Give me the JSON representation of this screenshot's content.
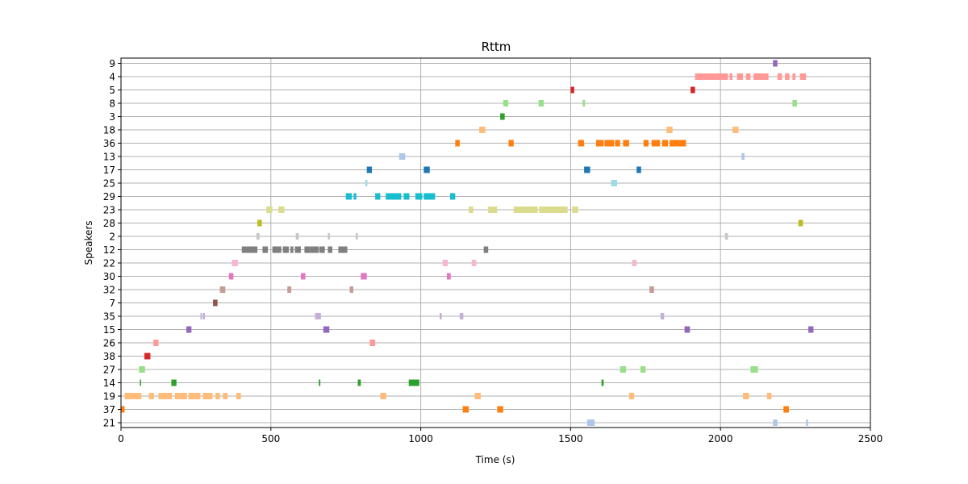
{
  "chart_data": {
    "type": "gantt",
    "title": "Rttm",
    "xlabel": "Time (s)",
    "ylabel": "Speakers",
    "xlim": [
      0,
      2500
    ],
    "x_ticks": [
      0,
      500,
      1000,
      1500,
      2000,
      2500
    ],
    "grid": true,
    "speakers": [
      "9",
      "4",
      "5",
      "8",
      "3",
      "18",
      "36",
      "13",
      "17",
      "25",
      "29",
      "23",
      "28",
      "2",
      "12",
      "22",
      "30",
      "32",
      "7",
      "35",
      "15",
      "26",
      "38",
      "27",
      "14",
      "19",
      "37",
      "21"
    ],
    "colors": {
      "9": "#9467bd",
      "4": "#ff9896",
      "5": "#d62728",
      "8": "#98df8a",
      "3": "#2ca02c",
      "18": "#ffbb78",
      "36": "#ff7f0e",
      "13": "#aec7e8",
      "17": "#1f77b4",
      "25": "#9edae5",
      "29": "#17becf",
      "23": "#dbdb8d",
      "28": "#bcbd22",
      "2": "#c7c7c7",
      "12": "#7f7f7f",
      "22": "#f7b6d2",
      "30": "#e377c2",
      "32": "#c49c94",
      "7": "#8c564b",
      "35": "#c5b0d5",
      "15": "#9467bd",
      "26": "#ff9896",
      "38": "#d62728",
      "27": "#98df8a",
      "14": "#2ca02c",
      "19": "#ffbb78",
      "37": "#ff7f0e",
      "21": "#aec7e8"
    },
    "segments": {
      "9": [
        [
          2175,
          2190
        ]
      ],
      "4": [
        [
          1915,
          2025
        ],
        [
          2030,
          2040
        ],
        [
          2055,
          2075
        ],
        [
          2085,
          2100
        ],
        [
          2110,
          2145
        ],
        [
          2145,
          2160
        ],
        [
          2190,
          2205
        ],
        [
          2215,
          2230
        ],
        [
          2240,
          2250
        ],
        [
          2265,
          2285
        ]
      ],
      "5": [
        [
          1500,
          1512
        ],
        [
          1900,
          1915
        ]
      ],
      "8": [
        [
          1275,
          1292
        ],
        [
          1393,
          1410
        ],
        [
          1540,
          1548
        ],
        [
          2240,
          2255
        ]
      ],
      "3": [
        [
          1265,
          1280
        ]
      ],
      "18": [
        [
          1195,
          1215
        ],
        [
          1820,
          1840
        ],
        [
          2040,
          2060
        ]
      ],
      "36": [
        [
          1115,
          1130
        ],
        [
          1293,
          1310
        ],
        [
          1525,
          1545
        ],
        [
          1585,
          1610
        ],
        [
          1613,
          1645
        ],
        [
          1648,
          1665
        ],
        [
          1675,
          1695
        ],
        [
          1743,
          1760
        ],
        [
          1770,
          1798
        ],
        [
          1805,
          1825
        ],
        [
          1830,
          1885
        ]
      ],
      "13": [
        [
          928,
          948
        ],
        [
          2070,
          2080
        ]
      ],
      "17": [
        [
          820,
          837
        ],
        [
          1010,
          1030
        ],
        [
          1545,
          1565
        ],
        [
          1720,
          1735
        ]
      ],
      "25": [
        [
          815,
          822
        ],
        [
          1635,
          1655
        ]
      ],
      "29": [
        [
          750,
          770
        ],
        [
          776,
          785
        ],
        [
          848,
          865
        ],
        [
          883,
          935
        ],
        [
          943,
          962
        ],
        [
          982,
          1005
        ],
        [
          1010,
          1048
        ],
        [
          1098,
          1115
        ]
      ],
      "23": [
        [
          485,
          505
        ],
        [
          525,
          545
        ],
        [
          1160,
          1175
        ],
        [
          1225,
          1255
        ],
        [
          1310,
          1390
        ],
        [
          1395,
          1490
        ],
        [
          1505,
          1525
        ]
      ],
      "28": [
        [
          455,
          470
        ],
        [
          2260,
          2275
        ]
      ],
      "2": [
        [
          452,
          462
        ],
        [
          583,
          593
        ],
        [
          690,
          697
        ],
        [
          783,
          790
        ],
        [
          2015,
          2025
        ]
      ],
      "12": [
        [
          403,
          455
        ],
        [
          472,
          490
        ],
        [
          505,
          535
        ],
        [
          540,
          560
        ],
        [
          565,
          575
        ],
        [
          580,
          600
        ],
        [
          612,
          630
        ],
        [
          630,
          660
        ],
        [
          662,
          680
        ],
        [
          690,
          705
        ],
        [
          725,
          755
        ],
        [
          1210,
          1225
        ]
      ],
      "22": [
        [
          370,
          390
        ],
        [
          1073,
          1090
        ],
        [
          1170,
          1185
        ],
        [
          1705,
          1720
        ]
      ],
      "30": [
        [
          360,
          375
        ],
        [
          600,
          615
        ],
        [
          800,
          820
        ],
        [
          1087,
          1100
        ]
      ],
      "32": [
        [
          330,
          348
        ],
        [
          555,
          568
        ],
        [
          763,
          775
        ],
        [
          1763,
          1778
        ]
      ],
      "7": [
        [
          307,
          322
        ]
      ],
      "35": [
        [
          265,
          270
        ],
        [
          273,
          280
        ],
        [
          647,
          667
        ],
        [
          1063,
          1070
        ],
        [
          1130,
          1142
        ],
        [
          1800,
          1812
        ]
      ],
      "15": [
        [
          218,
          235
        ],
        [
          675,
          695
        ],
        [
          1880,
          1898
        ],
        [
          2293,
          2310
        ]
      ],
      "26": [
        [
          108,
          125
        ],
        [
          830,
          848
        ]
      ],
      "38": [
        [
          78,
          98
        ]
      ],
      "27": [
        [
          60,
          80
        ],
        [
          1665,
          1685
        ],
        [
          1733,
          1750
        ],
        [
          2100,
          2125
        ]
      ],
      "14": [
        [
          63,
          67
        ],
        [
          168,
          185
        ],
        [
          660,
          665
        ],
        [
          790,
          800
        ],
        [
          960,
          995
        ],
        [
          1603,
          1610
        ]
      ],
      "19": [
        [
          12,
          68
        ],
        [
          93,
          110
        ],
        [
          125,
          170
        ],
        [
          180,
          220
        ],
        [
          225,
          265
        ],
        [
          273,
          305
        ],
        [
          315,
          330
        ],
        [
          340,
          355
        ],
        [
          385,
          400
        ],
        [
          865,
          885
        ],
        [
          1180,
          1200
        ],
        [
          1695,
          1712
        ],
        [
          2075,
          2095
        ],
        [
          2155,
          2170
        ]
      ],
      "37": [
        [
          0,
          12
        ],
        [
          1140,
          1160
        ],
        [
          1255,
          1275
        ],
        [
          2210,
          2228
        ]
      ],
      "21": [
        [
          1555,
          1580
        ],
        [
          2175,
          2190
        ],
        [
          2285,
          2292
        ]
      ]
    }
  }
}
